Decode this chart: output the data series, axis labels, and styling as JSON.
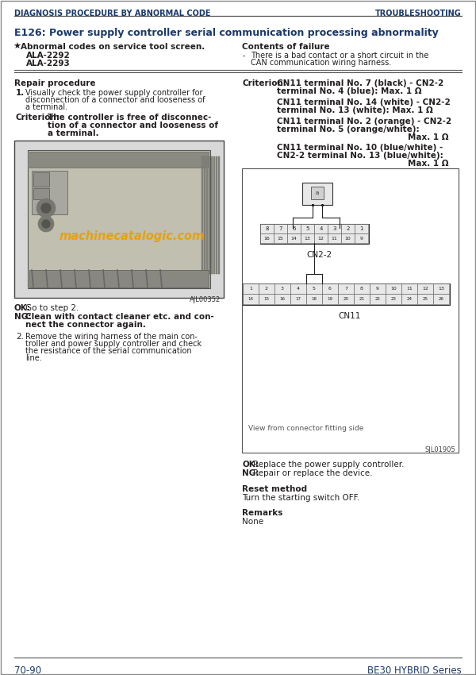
{
  "header_left": "DIAGNOSIS PROCEDURE BY ABNORMAL CODE",
  "header_right": "TROUBLESHOOTING",
  "title": "E126: Power supply controller serial communication processing abnormality",
  "abnormal_label": "Abnormal codes on service tool screen.",
  "codes": [
    "ALA-2292",
    "ALA-2293"
  ],
  "contents_label": "Contents of failure",
  "contents_line1": "There is a bad contact or a short circuit in the",
  "contents_line2": "CAN communication wiring harness.",
  "repair_label": "Repair procedure",
  "step1_num": "1.",
  "step1_line1": "Visually check the power supply controller for",
  "step1_line2": "disconnection of a connector and looseness of",
  "step1_line3": "a terminal.",
  "crit1_pre": "Criterion:",
  "crit1_line1": "The controller is free of disconnec-",
  "crit1_line2": "tion of a connector and looseness of",
  "crit1_line3": "a terminal.",
  "ok1_bold": "OK:",
  "ok1_rest": " Go to step 2.",
  "ng1_bold": "NG:",
  "ng1_line1": " Clean with contact cleaner etc. and con-",
  "ng1_line2": "nect the connector again.",
  "step2_num": "2.",
  "step2_line1": "Remove the wiring harness of the main con-",
  "step2_line2": "troller and power supply controller and check",
  "step2_line3": "the resistance of the serial communication",
  "step2_line4": "line.",
  "crit2_pre": "Criterion:",
  "crit2_block1_l1": "CN11 terminal No. 7 (black) - CN2-2",
  "crit2_block1_l2": "terminal No. 4 (blue): Max. 1 Ω",
  "crit2_block2_l1": "CN11 terminal No. 14 (white) - CN2-2",
  "crit2_block2_l2": "terminal No. 13 (white): Max. 1 Ω",
  "crit2_block3_l1": "CN11 terminal No. 2 (orange) - CN2-2",
  "crit2_block3_l2": "terminal No. 5 (orange/white):",
  "crit2_block3_l3": "Max. 1 Ω",
  "crit2_block4_l1": "CN11 terminal No. 10 (blue/white) -",
  "crit2_block4_l2": "CN2-2 terminal No. 13 (blue/white):",
  "crit2_block4_l3": "Max. 1 Ω",
  "cn22_label": "CN2-2",
  "cn11_label": "CN11",
  "view_note": "View from connector fitting side",
  "ok2_bold": "OK:",
  "ok2_rest": " Replace the power supply controller.",
  "ng2_bold": "NG:",
  "ng2_rest": " Repair or replace the device.",
  "reset_label": "Reset method",
  "reset_text": "Turn the starting switch OFF.",
  "remarks_label": "Remarks",
  "remarks_text": "None",
  "footer_left": "70-90",
  "footer_right": "BE30 HYBRID Series",
  "watermark": "machinecatalogic.com",
  "img_label1": "AJL00352",
  "img_label2": "SJL01905",
  "cn22_upper": [
    "8",
    "7",
    "6",
    "5",
    "4",
    "3",
    "2",
    "1"
  ],
  "cn22_lower": [
    "16",
    "15",
    "14",
    "13",
    "12",
    "11",
    "10",
    "9"
  ],
  "cn11_upper": [
    "1",
    "2",
    "3",
    "4",
    "5",
    "6",
    "7",
    "8",
    "9",
    "10",
    "11",
    "12",
    "13"
  ],
  "cn11_lower": [
    "14",
    "15",
    "16",
    "17",
    "18",
    "19",
    "20",
    "21",
    "22",
    "23",
    "24",
    "25",
    "26"
  ],
  "bg_color": "#ffffff",
  "text_color": "#231f20",
  "header_color": "#1a3a6b",
  "title_color": "#1a3a6b",
  "border_color": "#555555",
  "dark_color": "#333333"
}
